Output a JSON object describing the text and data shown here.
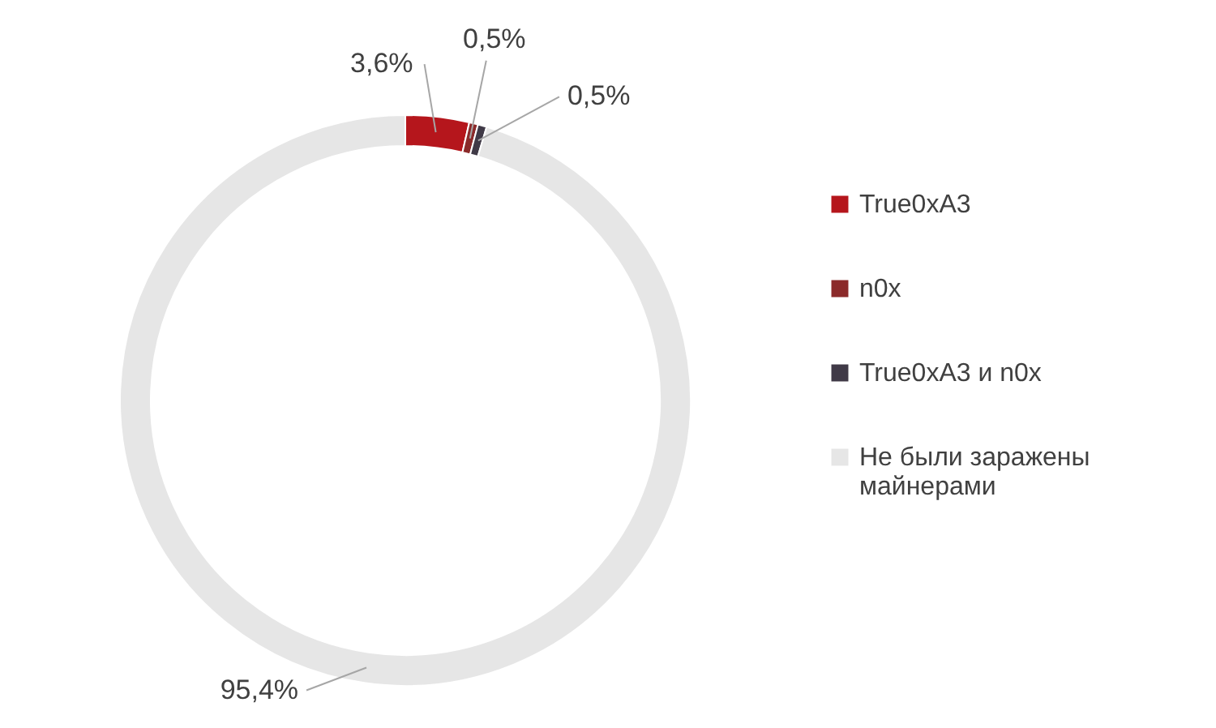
{
  "chart_data": {
    "type": "donut",
    "categories": [
      "True0xA3",
      "n0x",
      "True0xA3 и n0x",
      "Не были заражены майнерами"
    ],
    "values": [
      3.6,
      0.5,
      0.5,
      95.4
    ],
    "colors": [
      "#b5161c",
      "#8b2a2a",
      "#403a47",
      "#e6e6e6"
    ],
    "value_labels": [
      "3,6%",
      "0,5%",
      "0,5%",
      "95,4%"
    ],
    "legend": "right"
  }
}
